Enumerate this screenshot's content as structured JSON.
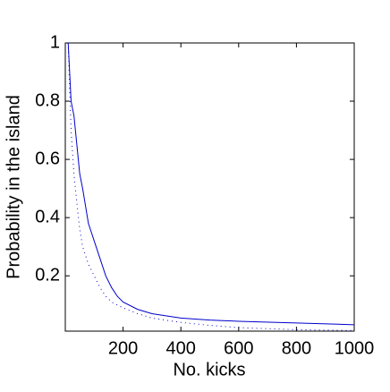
{
  "chart_data": {
    "type": "line",
    "x_label": "No. kicks",
    "y_label": "Probability in the island",
    "x": [
      10,
      20,
      30,
      40,
      50,
      60,
      80,
      100,
      120,
      140,
      160,
      180,
      200,
      250,
      300,
      400,
      500,
      600,
      800,
      1000
    ],
    "series": [
      {
        "color": "#0000cc",
        "style": "solid",
        "values": [
          1.0,
          0.8,
          0.75,
          0.65,
          0.55,
          0.5,
          0.38,
          0.32,
          0.26,
          0.2,
          0.16,
          0.13,
          0.11,
          0.085,
          0.07,
          0.055,
          0.048,
          0.044,
          0.038,
          0.032
        ]
      },
      {
        "color": "#0000cc",
        "style": "dotted",
        "values": [
          1.0,
          0.7,
          0.55,
          0.45,
          0.36,
          0.3,
          0.24,
          0.2,
          0.16,
          0.13,
          0.11,
          0.1,
          0.09,
          0.07,
          0.055,
          0.04,
          0.03,
          0.022,
          0.015,
          0.012
        ]
      }
    ],
    "xlim": [
      0,
      1000
    ],
    "ylim": [
      0.01,
      1
    ],
    "xticks": [
      200,
      400,
      600,
      800,
      1000
    ],
    "yticks": [
      0.2,
      0.4,
      0.6,
      0.8,
      1
    ],
    "grid": false
  }
}
